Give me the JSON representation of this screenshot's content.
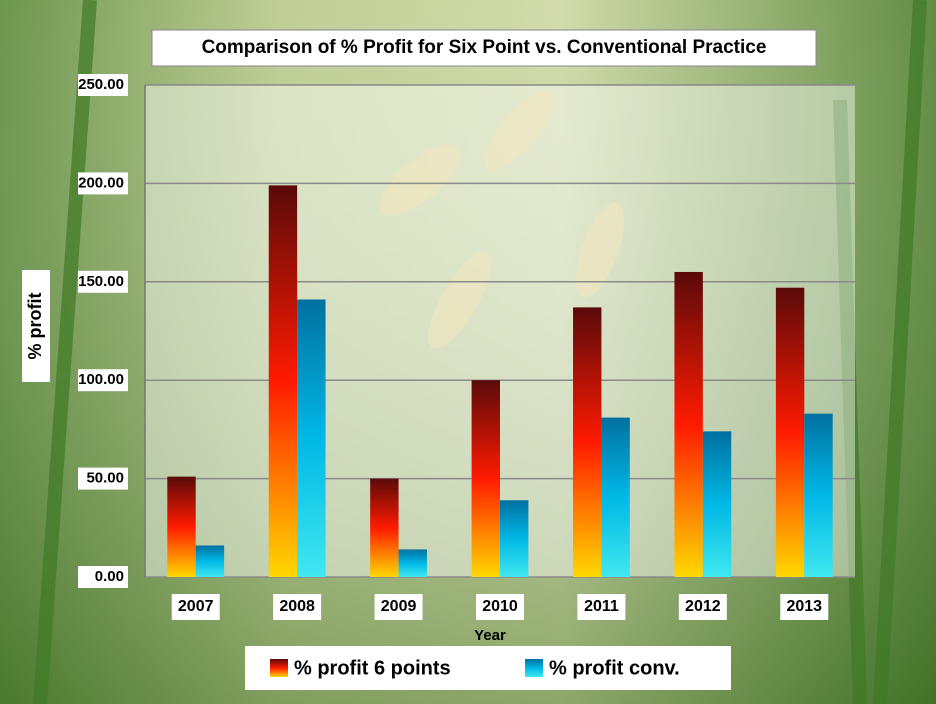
{
  "chart_data": {
    "type": "bar",
    "title": "Comparison of % Profit for Six Point vs. Conventional Practice",
    "x_label": "Year",
    "y_label": "% profit",
    "categories": [
      "2007",
      "2008",
      "2009",
      "2010",
      "2011",
      "2012",
      "2013"
    ],
    "series": [
      {
        "name": "% profit 6 points",
        "color": "#ff1a00",
        "values": [
          51,
          199,
          50,
          100,
          137,
          155,
          147
        ]
      },
      {
        "name": "% profit conv.",
        "color": "#00b8e6",
        "values": [
          16,
          141,
          14,
          39,
          81,
          74,
          83
        ]
      }
    ],
    "ylim": [
      0,
      250
    ],
    "yticks": [
      {
        "value": 0,
        "label": "0.00"
      },
      {
        "value": 50,
        "label": "50.00"
      },
      {
        "value": 100,
        "label": "100.00"
      },
      {
        "value": 150,
        "label": "150.00"
      },
      {
        "value": 200,
        "label": "200.00"
      },
      {
        "value": 250,
        "label": "250.00"
      }
    ],
    "grid": true,
    "legend": "bottom"
  }
}
